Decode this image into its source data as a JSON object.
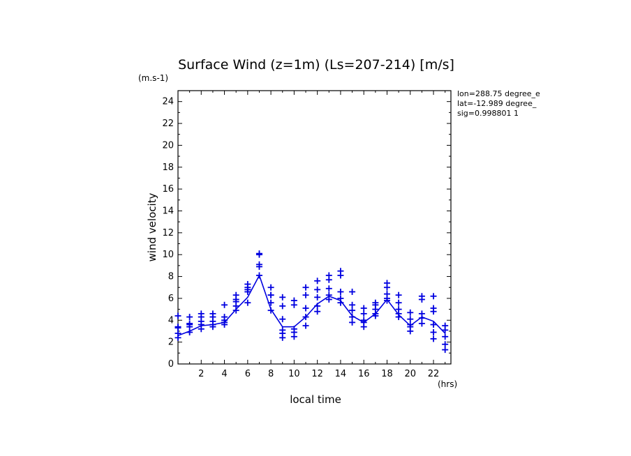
{
  "chart_data": {
    "type": "line",
    "title": "Surface Wind (z=1m) (Ls=207-214) [m/s]",
    "ylabel": "wind velocity",
    "yunit": "(m.s-1)",
    "xlabel": "local time",
    "xunit": "(hrs)",
    "xlim": [
      0,
      23.5
    ],
    "ylim": [
      0,
      25
    ],
    "xticks": [
      2,
      4,
      6,
      8,
      10,
      12,
      14,
      16,
      18,
      20,
      22
    ],
    "yticks": [
      0,
      2,
      4,
      6,
      8,
      10,
      12,
      14,
      16,
      18,
      20,
      22,
      24
    ],
    "info": [
      "lon=288.75 degree_e",
      "lat=-12.989 degree_",
      "sig=0.998801 1"
    ],
    "color": "#0000e0",
    "series": [
      {
        "style": "line",
        "x": [
          0,
          1,
          2,
          3,
          4,
          5,
          6,
          7,
          8,
          9,
          10,
          11,
          12,
          13,
          14,
          15,
          16,
          17,
          18,
          19,
          20,
          21,
          22,
          23
        ],
        "y": [
          2.6,
          3.0,
          3.5,
          3.6,
          3.8,
          5.0,
          6.1,
          8.1,
          5.0,
          3.4,
          3.4,
          4.3,
          5.5,
          6.2,
          5.8,
          4.4,
          3.8,
          4.6,
          5.9,
          4.5,
          3.5,
          4.3,
          3.9,
          2.8
        ]
      },
      {
        "style": "markers",
        "points": [
          {
            "x": 0,
            "y": [
              2.4,
              2.8,
              3.3,
              3.4,
              4.4
            ]
          },
          {
            "x": 1,
            "y": [
              2.9,
              3.4,
              3.6,
              3.7,
              4.3
            ]
          },
          {
            "x": 2,
            "y": [
              3.2,
              3.6,
              3.9,
              4.3,
              4.6
            ]
          },
          {
            "x": 3,
            "y": [
              3.4,
              3.6,
              3.9,
              4.3,
              4.6
            ]
          },
          {
            "x": 4,
            "y": [
              3.6,
              3.8,
              4.0,
              4.3,
              5.4
            ]
          },
          {
            "x": 5,
            "y": [
              4.9,
              5.3,
              5.7,
              5.9,
              6.3
            ]
          },
          {
            "x": 6,
            "y": [
              5.6,
              6.6,
              6.8,
              7.0,
              7.3
            ]
          },
          {
            "x": 7,
            "y": [
              8.1,
              8.9,
              9.1,
              10.0,
              10.1
            ]
          },
          {
            "x": 8,
            "y": [
              4.9,
              5.6,
              6.3,
              6.3,
              7.0
            ]
          },
          {
            "x": 9,
            "y": [
              2.4,
              2.8,
              3.1,
              4.1,
              5.3,
              6.1
            ]
          },
          {
            "x": 10,
            "y": [
              2.5,
              2.9,
              3.2,
              5.4,
              5.8
            ]
          },
          {
            "x": 11,
            "y": [
              3.5,
              4.3,
              5.1,
              6.3,
              7.0
            ]
          },
          {
            "x": 12,
            "y": [
              4.8,
              5.3,
              6.1,
              6.8,
              7.6
            ]
          },
          {
            "x": 13,
            "y": [
              5.9,
              6.3,
              6.9,
              7.7,
              8.1
            ]
          },
          {
            "x": 14,
            "y": [
              5.6,
              6.0,
              6.6,
              8.1,
              8.5
            ]
          },
          {
            "x": 15,
            "y": [
              3.8,
              4.3,
              4.9,
              5.4,
              6.6
            ]
          },
          {
            "x": 16,
            "y": [
              3.4,
              3.8,
              4.0,
              4.6,
              5.1
            ]
          },
          {
            "x": 17,
            "y": [
              4.4,
              4.6,
              5.0,
              5.4,
              5.6
            ]
          },
          {
            "x": 18,
            "y": [
              5.8,
              6.0,
              6.4,
              7.0,
              7.4
            ]
          },
          {
            "x": 19,
            "y": [
              4.3,
              4.6,
              5.0,
              5.6,
              6.3
            ]
          },
          {
            "x": 20,
            "y": [
              3.0,
              3.4,
              3.6,
              4.1,
              4.7
            ]
          },
          {
            "x": 21,
            "y": [
              3.7,
              4.2,
              4.6,
              5.9,
              6.2
            ]
          },
          {
            "x": 22,
            "y": [
              2.3,
              2.9,
              3.6,
              4.8,
              5.1,
              6.2
            ]
          },
          {
            "x": 23,
            "y": [
              1.3,
              1.8,
              2.5,
              3.1,
              3.5
            ]
          }
        ]
      }
    ]
  }
}
